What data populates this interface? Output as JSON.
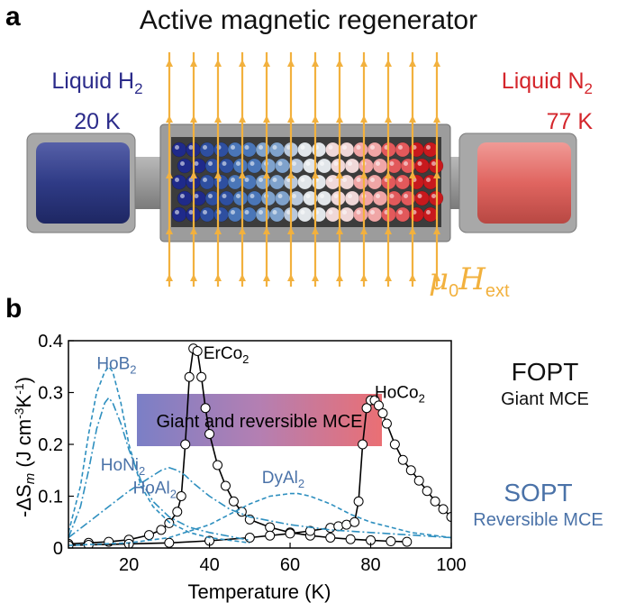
{
  "panel_a": {
    "letter": "a",
    "title": "Active magnetic regenerator",
    "left_fluid": "Liquid H",
    "left_fluid_sub": "2",
    "left_temp": "20 K",
    "right_fluid": "Liquid N",
    "right_fluid_sub": "2",
    "right_temp": "77 K",
    "field_symbol": "μ",
    "field_sub1": "0",
    "field_H": "H",
    "field_sub2": "ext",
    "colors": {
      "cold": "#2b2b8a",
      "hot": "#d4252b",
      "field_arrow": "#f2b13e"
    }
  },
  "panel_b": {
    "letter": "b",
    "fopt_title": "FOPT",
    "fopt_sub": "Giant MCE",
    "sopt_title": "SOPT",
    "sopt_sub": "Reversible MCE",
    "banner": "Giant and reversible MCE"
  },
  "chart_data": {
    "type": "line",
    "xlabel": "Temperature (K)",
    "ylabel": "-ΔS_m (J cm^-3 K^-1)",
    "xlim": [
      5,
      100
    ],
    "ylim": [
      0,
      0.4
    ],
    "xticks": [
      20,
      40,
      60,
      80,
      100
    ],
    "yticks": [
      0,
      0.1,
      0.2,
      0.3,
      0.4
    ],
    "series": [
      {
        "name": "ErCo2",
        "style": "solid-circles",
        "color": "#000000",
        "x": [
          5,
          10,
          15,
          20,
          25,
          28,
          30,
          32,
          33,
          34,
          35,
          36,
          37,
          38,
          39,
          40,
          42,
          44,
          46,
          48,
          50,
          55,
          60,
          65,
          70,
          75,
          80,
          85,
          89
        ],
        "y": [
          0.008,
          0.01,
          0.012,
          0.016,
          0.025,
          0.035,
          0.048,
          0.07,
          0.1,
          0.2,
          0.33,
          0.385,
          0.38,
          0.33,
          0.27,
          0.22,
          0.16,
          0.12,
          0.09,
          0.07,
          0.055,
          0.04,
          0.03,
          0.024,
          0.02,
          0.017,
          0.015,
          0.013,
          0.012
        ]
      },
      {
        "name": "HoCo2",
        "style": "solid-circles",
        "color": "#000000",
        "x": [
          5,
          10,
          20,
          30,
          40,
          50,
          55,
          60,
          65,
          70,
          72,
          74,
          76,
          77,
          78,
          79,
          80,
          81,
          82,
          83,
          84,
          86,
          88,
          90,
          92,
          94,
          96,
          98,
          100
        ],
        "y": [
          0.005,
          0.006,
          0.008,
          0.01,
          0.014,
          0.02,
          0.024,
          0.028,
          0.033,
          0.039,
          0.042,
          0.045,
          0.05,
          0.09,
          0.2,
          0.27,
          0.285,
          0.285,
          0.275,
          0.26,
          0.24,
          0.2,
          0.17,
          0.15,
          0.13,
          0.11,
          0.09,
          0.075,
          0.06
        ]
      },
      {
        "name": "HoB2",
        "style": "dashed",
        "color": "#2e8fbf",
        "x": [
          5,
          8,
          10,
          12,
          14,
          15,
          16,
          18,
          20,
          23,
          26,
          30,
          35,
          40,
          50
        ],
        "y": [
          0.03,
          0.12,
          0.22,
          0.3,
          0.34,
          0.35,
          0.34,
          0.28,
          0.2,
          0.12,
          0.08,
          0.05,
          0.03,
          0.02,
          0.01
        ]
      },
      {
        "name": "HoNi2",
        "style": "dashdot",
        "color": "#2e8fbf",
        "x": [
          5,
          8,
          10,
          12,
          14,
          15,
          16,
          18,
          20,
          23,
          26,
          30,
          35,
          40,
          50
        ],
        "y": [
          0.02,
          0.08,
          0.15,
          0.23,
          0.28,
          0.29,
          0.28,
          0.24,
          0.19,
          0.13,
          0.09,
          0.06,
          0.04,
          0.03,
          0.015
        ]
      },
      {
        "name": "HoAl2",
        "style": "dashdot",
        "color": "#2e8fbf",
        "x": [
          5,
          10,
          15,
          20,
          25,
          28,
          30,
          32,
          34,
          36,
          40,
          45,
          50,
          60,
          70,
          80,
          90,
          100
        ],
        "y": [
          0.02,
          0.05,
          0.08,
          0.11,
          0.135,
          0.15,
          0.155,
          0.15,
          0.14,
          0.125,
          0.1,
          0.075,
          0.06,
          0.045,
          0.035,
          0.03,
          0.025,
          0.02
        ]
      },
      {
        "name": "DyAl2",
        "style": "dashed",
        "color": "#2e8fbf",
        "x": [
          5,
          20,
          30,
          40,
          45,
          50,
          55,
          60,
          62,
          65,
          70,
          75,
          80,
          85,
          90,
          95,
          100
        ],
        "y": [
          0.005,
          0.01,
          0.02,
          0.045,
          0.065,
          0.085,
          0.1,
          0.105,
          0.105,
          0.1,
          0.085,
          0.065,
          0.05,
          0.04,
          0.03,
          0.025,
          0.02
        ]
      }
    ],
    "annotations": [
      {
        "text": "HoB",
        "sub": "2",
        "x": 12,
        "y": 0.345,
        "color": "#4a72a8"
      },
      {
        "text": "ErCo",
        "sub": "2",
        "x": 38.5,
        "y": 0.365,
        "color": "#000000"
      },
      {
        "text": "HoCo",
        "sub": "2",
        "x": 81,
        "y": 0.29,
        "color": "#000000"
      },
      {
        "text": "HoNi",
        "sub": "2",
        "x": 13,
        "y": 0.15,
        "color": "#4a72a8"
      },
      {
        "text": "HoAl",
        "sub": "2",
        "x": 21,
        "y": 0.105,
        "color": "#4a72a8"
      },
      {
        "text": "DyAl",
        "sub": "2",
        "x": 53,
        "y": 0.125,
        "color": "#4a72a8"
      }
    ]
  }
}
